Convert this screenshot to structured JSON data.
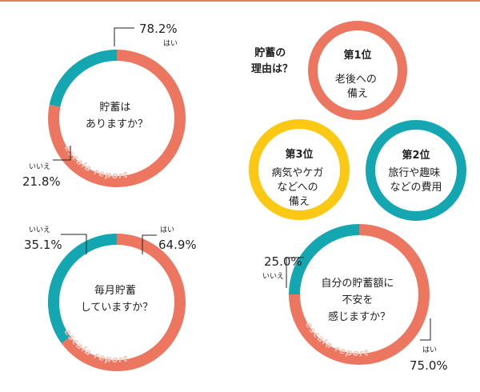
{
  "chart_data": [
    {
      "type": "pie",
      "title": "貯蓄は\nありますか？",
      "categories": [
        "はい",
        "いいえ"
      ],
      "values": [
        78.2,
        21.8
      ],
      "value_labels": [
        "78.2%",
        "21.8%"
      ],
      "colors": [
        "#ec7660",
        "#14a6b1"
      ],
      "watermark": "escala report"
    },
    {
      "type": "pie",
      "title": "毎月貯蓄\nしていますか？",
      "categories": [
        "はい",
        "いいえ"
      ],
      "values": [
        64.9,
        35.1
      ],
      "value_labels": [
        "64.9%",
        "35.1%"
      ],
      "colors": [
        "#ec7660",
        "#14a6b1"
      ],
      "watermark": "escala report"
    },
    {
      "type": "pie",
      "title": "自分の貯蓄額に\n不安を\n感じますか？",
      "categories": [
        "はい",
        "いいえ"
      ],
      "values": [
        75.0,
        25.0
      ],
      "value_labels": [
        "75.0%",
        "25.0%"
      ],
      "colors": [
        "#ec7660",
        "#14a6b1"
      ],
      "watermark": "escala report"
    }
  ],
  "reasons": {
    "heading": "貯蓄の\n理由は？",
    "items": [
      {
        "rank": "第1位",
        "text": "老後への\n備え",
        "color": "#ec7660"
      },
      {
        "rank": "第2位",
        "text": "旅行や趣味\nなどの費用",
        "color": "#14a6b1"
      },
      {
        "rank": "第3位",
        "text": "病気やケガ\nなどへの\n備え",
        "color": "#fbc814"
      }
    ]
  }
}
